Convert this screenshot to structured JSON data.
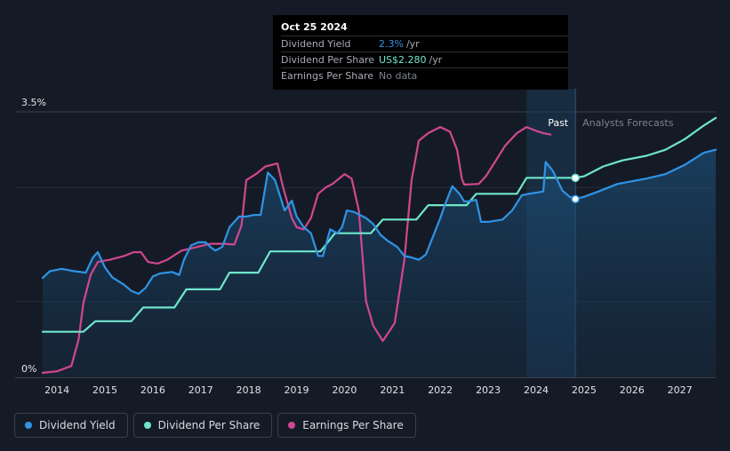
{
  "tooltip": {
    "date": "Oct 25 2024",
    "rows": [
      {
        "label": "Dividend Yield",
        "value": "2.3%",
        "unit": "/yr",
        "color": "#2f94e6"
      },
      {
        "label": "Dividend Per Share",
        "value": "US$2.280",
        "unit": "/yr",
        "color": "#6fe6cc"
      },
      {
        "label": "Earnings Per Share",
        "value": "No data",
        "unit": "",
        "color": "#7d828b"
      }
    ]
  },
  "legend": [
    {
      "label": "Dividend Yield",
      "color": "#2f94e6"
    },
    {
      "label": "Dividend Per Share",
      "color": "#6fe6cc"
    },
    {
      "label": "Earnings Per Share",
      "color": "#d1478f"
    }
  ],
  "chart_data": {
    "type": "line",
    "title": "",
    "y_axis": {
      "top_label": "3.5%",
      "bottom_label": "0%",
      "ylim": [
        0,
        3.5
      ]
    },
    "x_ticks": [
      "2014",
      "2015",
      "2016",
      "2017",
      "2018",
      "2019",
      "2020",
      "2021",
      "2022",
      "2023",
      "2024",
      "2025",
      "2026",
      "2027"
    ],
    "xlim": [
      2013.7,
      2027.75
    ],
    "past_label": "Past",
    "forecast_label": "Analysts Forecasts",
    "past_region": [
      2023.8,
      2024.82
    ],
    "series": [
      {
        "name": "Dividend Yield",
        "color": "#2f94e6",
        "points": [
          [
            2013.7,
            1.31
          ],
          [
            2013.85,
            1.4
          ],
          [
            2014.1,
            1.43
          ],
          [
            2014.35,
            1.4
          ],
          [
            2014.6,
            1.38
          ],
          [
            2014.75,
            1.58
          ],
          [
            2014.85,
            1.65
          ],
          [
            2015.0,
            1.45
          ],
          [
            2015.15,
            1.32
          ],
          [
            2015.4,
            1.22
          ],
          [
            2015.55,
            1.14
          ],
          [
            2015.7,
            1.1
          ],
          [
            2015.85,
            1.18
          ],
          [
            2016.0,
            1.33
          ],
          [
            2016.15,
            1.37
          ],
          [
            2016.4,
            1.39
          ],
          [
            2016.55,
            1.35
          ],
          [
            2016.65,
            1.55
          ],
          [
            2016.8,
            1.74
          ],
          [
            2016.95,
            1.78
          ],
          [
            2017.1,
            1.78
          ],
          [
            2017.2,
            1.72
          ],
          [
            2017.3,
            1.67
          ],
          [
            2017.45,
            1.72
          ],
          [
            2017.6,
            1.98
          ],
          [
            2017.8,
            2.12
          ],
          [
            2017.95,
            2.12
          ],
          [
            2018.1,
            2.14
          ],
          [
            2018.25,
            2.14
          ],
          [
            2018.4,
            2.7
          ],
          [
            2018.55,
            2.6
          ],
          [
            2018.75,
            2.2
          ],
          [
            2018.9,
            2.33
          ],
          [
            2019.0,
            2.12
          ],
          [
            2019.15,
            1.98
          ],
          [
            2019.3,
            1.9
          ],
          [
            2019.45,
            1.6
          ],
          [
            2019.55,
            1.6
          ],
          [
            2019.7,
            1.95
          ],
          [
            2019.85,
            1.9
          ],
          [
            2019.95,
            1.98
          ],
          [
            2020.05,
            2.2
          ],
          [
            2020.2,
            2.18
          ],
          [
            2020.45,
            2.1
          ],
          [
            2020.6,
            2.02
          ],
          [
            2020.75,
            1.88
          ],
          [
            2020.9,
            1.8
          ],
          [
            2021.1,
            1.72
          ],
          [
            2021.25,
            1.6
          ],
          [
            2021.4,
            1.58
          ],
          [
            2021.55,
            1.55
          ],
          [
            2021.7,
            1.62
          ],
          [
            2021.85,
            1.86
          ],
          [
            2022.0,
            2.1
          ],
          [
            2022.1,
            2.28
          ],
          [
            2022.25,
            2.52
          ],
          [
            2022.4,
            2.42
          ],
          [
            2022.5,
            2.32
          ],
          [
            2022.6,
            2.32
          ],
          [
            2022.75,
            2.34
          ],
          [
            2022.85,
            2.05
          ],
          [
            2023.0,
            2.05
          ],
          [
            2023.3,
            2.08
          ],
          [
            2023.5,
            2.2
          ],
          [
            2023.7,
            2.4
          ],
          [
            2023.85,
            2.42
          ],
          [
            2024.15,
            2.45
          ],
          [
            2024.2,
            2.84
          ],
          [
            2024.35,
            2.72
          ],
          [
            2024.55,
            2.46
          ],
          [
            2024.7,
            2.38
          ],
          [
            2024.82,
            2.35
          ],
          [
            2025.0,
            2.38
          ],
          [
            2025.3,
            2.45
          ],
          [
            2025.7,
            2.55
          ],
          [
            2026.3,
            2.62
          ],
          [
            2026.7,
            2.68
          ],
          [
            2027.1,
            2.8
          ],
          [
            2027.5,
            2.96
          ],
          [
            2027.75,
            3.0
          ]
        ]
      },
      {
        "name": "Dividend Per Share",
        "color": "#6fe6cc",
        "points": [
          [
            2013.7,
            0.6
          ],
          [
            2014.55,
            0.6
          ],
          [
            2014.8,
            0.74
          ],
          [
            2015.55,
            0.74
          ],
          [
            2015.8,
            0.92
          ],
          [
            2016.45,
            0.92
          ],
          [
            2016.7,
            1.16
          ],
          [
            2017.4,
            1.16
          ],
          [
            2017.6,
            1.38
          ],
          [
            2018.2,
            1.38
          ],
          [
            2018.45,
            1.66
          ],
          [
            2019.5,
            1.66
          ],
          [
            2019.8,
            1.9
          ],
          [
            2020.55,
            1.9
          ],
          [
            2020.8,
            2.08
          ],
          [
            2021.5,
            2.08
          ],
          [
            2021.75,
            2.27
          ],
          [
            2022.55,
            2.27
          ],
          [
            2022.75,
            2.42
          ],
          [
            2023.6,
            2.42
          ],
          [
            2023.8,
            2.63
          ],
          [
            2024.82,
            2.63
          ],
          [
            2025.0,
            2.65
          ],
          [
            2025.4,
            2.78
          ],
          [
            2025.8,
            2.86
          ],
          [
            2026.3,
            2.92
          ],
          [
            2026.7,
            3.0
          ],
          [
            2027.1,
            3.14
          ],
          [
            2027.5,
            3.32
          ],
          [
            2027.75,
            3.42
          ]
        ]
      },
      {
        "name": "Earnings Per Share",
        "color": "#d1478f",
        "points": [
          [
            2013.7,
            0.06
          ],
          [
            2014.0,
            0.08
          ],
          [
            2014.3,
            0.15
          ],
          [
            2014.45,
            0.5
          ],
          [
            2014.55,
            0.98
          ],
          [
            2014.7,
            1.35
          ],
          [
            2014.85,
            1.52
          ],
          [
            2015.1,
            1.55
          ],
          [
            2015.4,
            1.6
          ],
          [
            2015.6,
            1.65
          ],
          [
            2015.75,
            1.65
          ],
          [
            2015.9,
            1.52
          ],
          [
            2016.1,
            1.5
          ],
          [
            2016.3,
            1.55
          ],
          [
            2016.6,
            1.67
          ],
          [
            2016.8,
            1.7
          ],
          [
            2017.2,
            1.76
          ],
          [
            2017.5,
            1.76
          ],
          [
            2017.7,
            1.75
          ],
          [
            2017.85,
            2.0
          ],
          [
            2017.95,
            2.6
          ],
          [
            2018.15,
            2.68
          ],
          [
            2018.35,
            2.78
          ],
          [
            2018.6,
            2.82
          ],
          [
            2018.72,
            2.5
          ],
          [
            2018.9,
            2.1
          ],
          [
            2019.0,
            1.98
          ],
          [
            2019.15,
            1.95
          ],
          [
            2019.3,
            2.1
          ],
          [
            2019.45,
            2.42
          ],
          [
            2019.6,
            2.5
          ],
          [
            2019.75,
            2.55
          ],
          [
            2020.0,
            2.68
          ],
          [
            2020.15,
            2.62
          ],
          [
            2020.3,
            2.2
          ],
          [
            2020.45,
            1.0
          ],
          [
            2020.6,
            0.68
          ],
          [
            2020.8,
            0.48
          ],
          [
            2020.95,
            0.62
          ],
          [
            2021.05,
            0.72
          ],
          [
            2021.25,
            1.55
          ],
          [
            2021.4,
            2.6
          ],
          [
            2021.55,
            3.12
          ],
          [
            2021.75,
            3.22
          ],
          [
            2022.0,
            3.3
          ],
          [
            2022.2,
            3.24
          ],
          [
            2022.35,
            3.0
          ],
          [
            2022.45,
            2.62
          ],
          [
            2022.5,
            2.54
          ],
          [
            2022.8,
            2.55
          ],
          [
            2022.95,
            2.65
          ],
          [
            2023.2,
            2.9
          ],
          [
            2023.35,
            3.05
          ],
          [
            2023.6,
            3.22
          ],
          [
            2023.8,
            3.3
          ],
          [
            2024.0,
            3.25
          ],
          [
            2024.15,
            3.22
          ],
          [
            2024.3,
            3.2
          ]
        ]
      }
    ],
    "markers": [
      {
        "series": "Dividend Per Share",
        "x": 2024.82,
        "y": 2.63
      },
      {
        "series": "Dividend Yield",
        "x": 2024.82,
        "y": 2.35
      }
    ]
  }
}
